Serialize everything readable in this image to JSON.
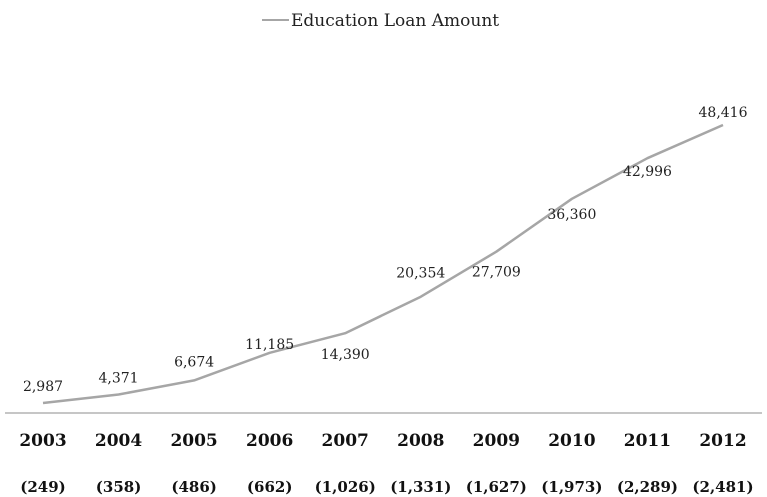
{
  "chart_data": {
    "type": "line",
    "title": "",
    "xlabel": "",
    "ylabel": "",
    "categories": [
      "2003",
      "2004",
      "2005",
      "2006",
      "2007",
      "2008",
      "2009",
      "2010",
      "2011",
      "2012"
    ],
    "category_sublabels": [
      "(249)",
      "(358)",
      "(486)",
      "(662)",
      "(1,026)",
      "(1,331)",
      "(1,627)",
      "(1,973)",
      "(2,289)",
      "(2,481)"
    ],
    "series": [
      {
        "name": "Education Loan Amount",
        "values": [
          2987,
          4371,
          6674,
          11185,
          14390,
          20354,
          27709,
          36360,
          42996,
          48416
        ],
        "value_labels": [
          "2,987",
          "4,371",
          "6,674",
          "11,185",
          "14,390",
          "20,354",
          "27,709",
          "36,360",
          "42,996",
          "48,416"
        ]
      }
    ],
    "ylim": [
      0,
      52500
    ],
    "grid": false,
    "legend_position": "top-center",
    "colors": {
      "line": "#a6a6a6",
      "axis": "#8c8c8c"
    }
  }
}
